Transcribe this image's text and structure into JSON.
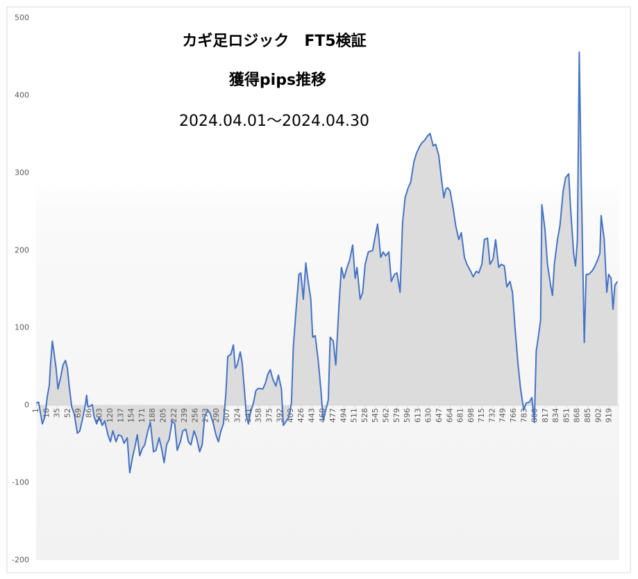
{
  "chart_data": {
    "type": "area",
    "title": "カギ足ロジック　FT5検証",
    "subtitle": "獲得pips推移",
    "period": "2024.04.01～2024.04.30",
    "color": "#4472c4",
    "fill": "#dcdcdc",
    "x": [
      1,
      5,
      11,
      15,
      19,
      22,
      24,
      27,
      30,
      33,
      36,
      41,
      44,
      48,
      51,
      54,
      58,
      62,
      67,
      71,
      76,
      80,
      82,
      84,
      88,
      91,
      94,
      98,
      102,
      107,
      111,
      116,
      120,
      124,
      129,
      133,
      138,
      142,
      147,
      151,
      156,
      160,
      163,
      167,
      171,
      175,
      180,
      184,
      189,
      193,
      198,
      202,
      206,
      210,
      214,
      219,
      223,
      227,
      232,
      236,
      241,
      245,
      249,
      254,
      258,
      263,
      267,
      271,
      276,
      280,
      285,
      289,
      293,
      297,
      301,
      305,
      308,
      313,
      317,
      320,
      323,
      328,
      331,
      335,
      338,
      341,
      344,
      349,
      353,
      357,
      364,
      368,
      372,
      376,
      380,
      385,
      389,
      394,
      397,
      402,
      406,
      410,
      413,
      417,
      422,
      425,
      429,
      433,
      436,
      441,
      444,
      448,
      453,
      457,
      461,
      465,
      469,
      472,
      477,
      481,
      486,
      490,
      494,
      499,
      503,
      508,
      512,
      515,
      520,
      524,
      528,
      533,
      540,
      544,
      548,
      553,
      557,
      561,
      566,
      570,
      575,
      579,
      584,
      588,
      592,
      597,
      601,
      606,
      610,
      615,
      619,
      623,
      628,
      632,
      637,
      641,
      646,
      650,
      654,
      657,
      660,
      664,
      669,
      673,
      678,
      682,
      687,
      691,
      697,
      701,
      706,
      710,
      715,
      719,
      724,
      728,
      733,
      737,
      742,
      746,
      751,
      755,
      760,
      764,
      768,
      773,
      777,
      782,
      786,
      791,
      795,
      799,
      802,
      806,
      809,
      811,
      816,
      820,
      825,
      828,
      831,
      836,
      840,
      845,
      849,
      854,
      857,
      862,
      865,
      868,
      871,
      874,
      879,
      882,
      886,
      891,
      895,
      900,
      904,
      906,
      911,
      915,
      918,
      922,
      925,
      928,
      932
    ],
    "values": [
      3,
      4,
      -24,
      -15,
      12,
      25,
      52,
      83,
      66,
      48,
      21,
      39,
      52,
      58,
      48,
      25,
      -2,
      -11,
      -36,
      -33,
      -15,
      1,
      13,
      -2,
      -1,
      1,
      -15,
      -24,
      -15,
      -26,
      -20,
      -38,
      -47,
      -33,
      -47,
      -38,
      -40,
      -49,
      -42,
      -87,
      -65,
      -51,
      -38,
      -65,
      -56,
      -51,
      -33,
      -22,
      -60,
      -58,
      -42,
      -56,
      -74,
      -51,
      -44,
      -20,
      -24,
      -58,
      -47,
      -33,
      -31,
      -47,
      -51,
      -33,
      -42,
      -60,
      -51,
      -15,
      -6,
      -11,
      -24,
      -38,
      -47,
      -33,
      -24,
      16,
      63,
      66,
      78,
      48,
      52,
      69,
      55,
      16,
      -15,
      -24,
      -11,
      3,
      19,
      22,
      21,
      28,
      40,
      46,
      34,
      25,
      39,
      21,
      -26,
      -20,
      -15,
      3,
      75,
      119,
      169,
      171,
      137,
      184,
      164,
      137,
      88,
      90,
      57,
      21,
      -20,
      -6,
      7,
      88,
      83,
      52,
      128,
      178,
      164,
      178,
      187,
      207,
      164,
      178,
      137,
      146,
      182,
      198,
      200,
      218,
      234,
      191,
      198,
      193,
      198,
      160,
      169,
      171,
      146,
      236,
      268,
      281,
      288,
      314,
      325,
      334,
      339,
      342,
      348,
      351,
      335,
      337,
      322,
      294,
      268,
      279,
      281,
      277,
      254,
      232,
      214,
      223,
      191,
      182,
      173,
      166,
      173,
      171,
      182,
      214,
      216,
      182,
      189,
      214,
      178,
      182,
      180,
      153,
      160,
      146,
      101,
      52,
      21,
      -6,
      3,
      4,
      10,
      -22,
      70,
      92,
      110,
      259,
      227,
      182,
      155,
      142,
      182,
      214,
      232,
      276,
      294,
      299,
      254,
      196,
      180,
      214,
      456,
      299,
      81,
      169,
      169,
      173,
      178,
      187,
      196,
      245,
      214,
      146,
      169,
      164,
      124,
      155,
      160
    ],
    "xlim": [
      1,
      935
    ],
    "xticks": [
      1,
      18,
      35,
      52,
      69,
      86,
      103,
      120,
      137,
      154,
      171,
      188,
      205,
      222,
      239,
      256,
      273,
      290,
      307,
      324,
      341,
      358,
      375,
      392,
      409,
      426,
      443,
      460,
      477,
      494,
      511,
      528,
      545,
      562,
      579,
      596,
      613,
      630,
      647,
      664,
      681,
      698,
      715,
      732,
      749,
      766,
      783,
      800,
      817,
      834,
      851,
      868,
      885,
      902,
      919
    ],
    "ylim": [
      -200,
      500
    ],
    "yticks": [
      -200,
      -100,
      0,
      100,
      200,
      300,
      400,
      500
    ]
  }
}
